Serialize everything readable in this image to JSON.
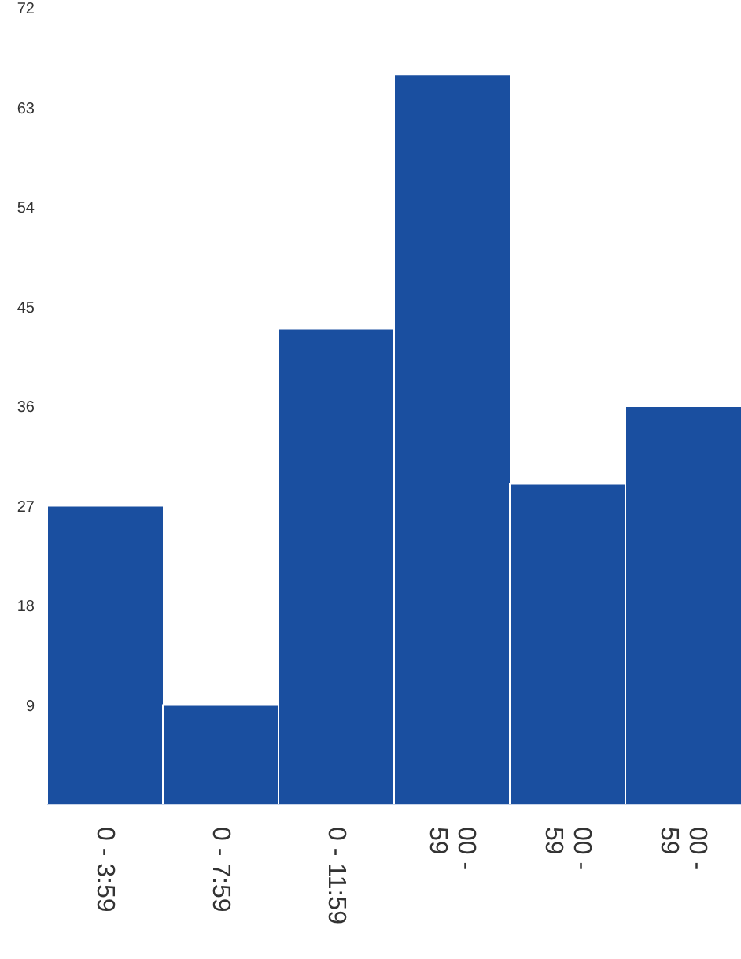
{
  "chart_data": {
    "type": "bar",
    "categories": [
      "0 - 3:59",
      "0 - 7:59",
      "0 - 11:59",
      "00 -\n59",
      "00 -\n59",
      "00 -\n59"
    ],
    "values": [
      27,
      9,
      43,
      66,
      29,
      36
    ],
    "color": "#1a4fa0",
    "ylim": [
      0,
      72
    ],
    "yticks": [
      9,
      18,
      27,
      36,
      45,
      54,
      63,
      72
    ],
    "grid": false,
    "legend": false
  }
}
